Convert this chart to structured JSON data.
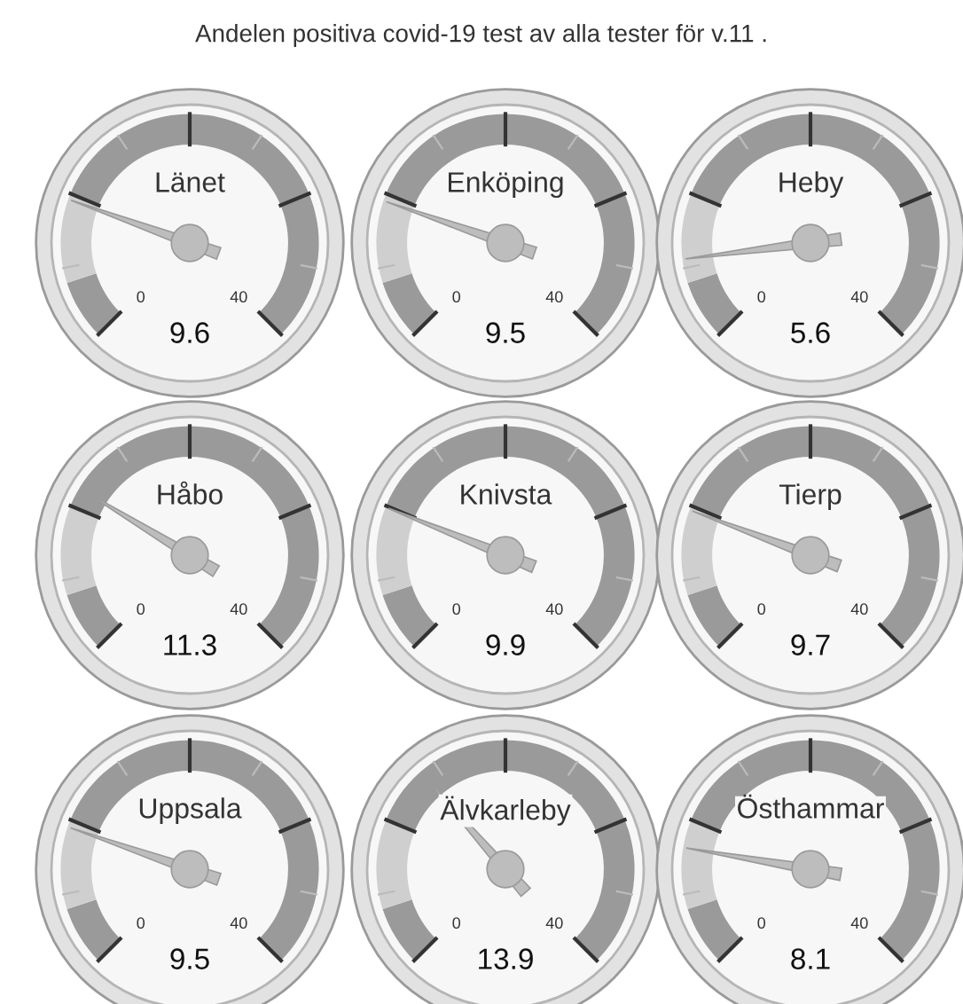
{
  "chart_data": [
    {
      "type": "other",
      "title": "Andelen positiva covid-19 test av alla tester för v.11 ."
    },
    {
      "type": "other",
      "title": "Länet",
      "values": [
        9.6
      ],
      "annotations": [
        "0",
        "40"
      ],
      "data_labels": true
    },
    {
      "type": "other",
      "title": "Enköping",
      "values": [
        9.5
      ],
      "annotations": [
        "0",
        "40"
      ],
      "data_labels": true
    },
    {
      "type": "other",
      "title": "Heby",
      "values": [
        5.6
      ],
      "annotations": [
        "0",
        "40"
      ],
      "data_labels": true
    },
    {
      "type": "other",
      "title": "Håbo",
      "values": [
        11.3
      ],
      "annotations": [
        "0",
        "40"
      ],
      "data_labels": true
    },
    {
      "type": "other",
      "title": "Knivsta",
      "values": [
        9.9
      ],
      "annotations": [
        "0",
        "40"
      ],
      "data_labels": true
    },
    {
      "type": "other",
      "title": "Tierp",
      "values": [
        9.7
      ],
      "annotations": [
        "0",
        "40"
      ],
      "data_labels": true
    },
    {
      "type": "other",
      "title": "Uppsala",
      "values": [
        9.5
      ],
      "annotations": [
        "0",
        "40"
      ],
      "data_labels": true
    },
    {
      "type": "other",
      "title": "Älvkarleby",
      "values": [
        13.9
      ],
      "annotations": [
        "0",
        "40"
      ],
      "data_labels": true
    },
    {
      "type": "other",
      "title": "Östhammar",
      "values": [
        8.1
      ],
      "annotations": [
        "0",
        "40"
      ],
      "data_labels": true
    }
  ]
}
